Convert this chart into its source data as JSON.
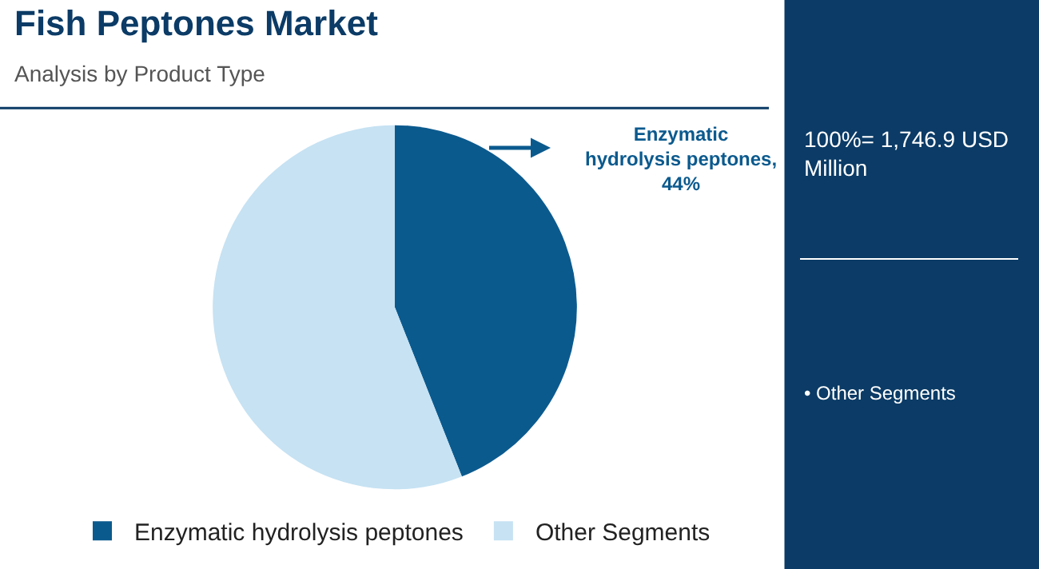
{
  "chart_data": {
    "type": "pie",
    "title": "Fish Peptones Market",
    "subtitle": "Analysis by Product Type",
    "categories": [
      "Enzymatic hydrolysis peptones",
      "Other Segments"
    ],
    "values": [
      44,
      56
    ],
    "colors": [
      "#0b5a8e",
      "#c6e2f3"
    ],
    "legend": "bottom",
    "annotations": [
      "Enzymatic hydrolysis peptones, 44%",
      "100%= 1,746.9 USD Million",
      "• Other Segments"
    ]
  }
}
